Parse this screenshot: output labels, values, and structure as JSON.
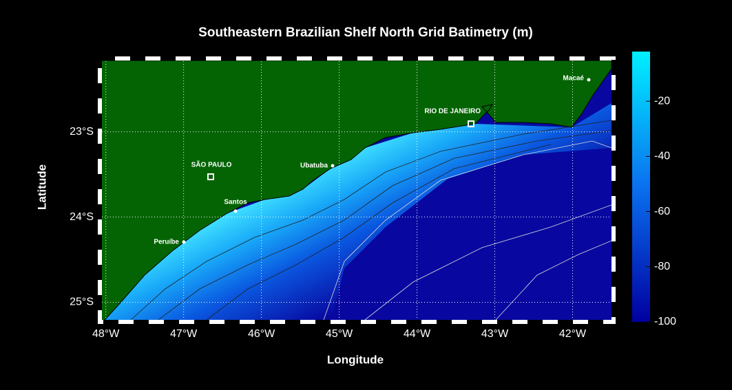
{
  "title": "Southeastern Brazilian Shelf North Grid Batimetry (m)",
  "map": {
    "xlabel": "Longitude",
    "ylabel": "Latitude",
    "xlim": [
      -48.05,
      -41.5
    ],
    "ylim": [
      -25.23,
      -22.14
    ],
    "xticks": [
      {
        "value": -48,
        "label": "48°W"
      },
      {
        "value": -47,
        "label": "47°W"
      },
      {
        "value": -46,
        "label": "46°W"
      },
      {
        "value": -45,
        "label": "45°W"
      },
      {
        "value": -44,
        "label": "44°W"
      },
      {
        "value": -43,
        "label": "43°W"
      },
      {
        "value": -42,
        "label": "42°W"
      }
    ],
    "yticks": [
      {
        "value": -23,
        "label": "23°S"
      },
      {
        "value": -24,
        "label": "24°S"
      },
      {
        "value": -25,
        "label": "25°S"
      }
    ],
    "grid": true,
    "places": [
      "Macaé",
      "RIO DE JANEIRO",
      "SÃO PAULO",
      "Ubatuba",
      "Santos",
      "Peruíbe"
    ]
  },
  "colorbar": {
    "clim": [
      -100,
      -2
    ],
    "ticks": [
      -20,
      -40,
      -60,
      -80,
      -100
    ]
  }
}
